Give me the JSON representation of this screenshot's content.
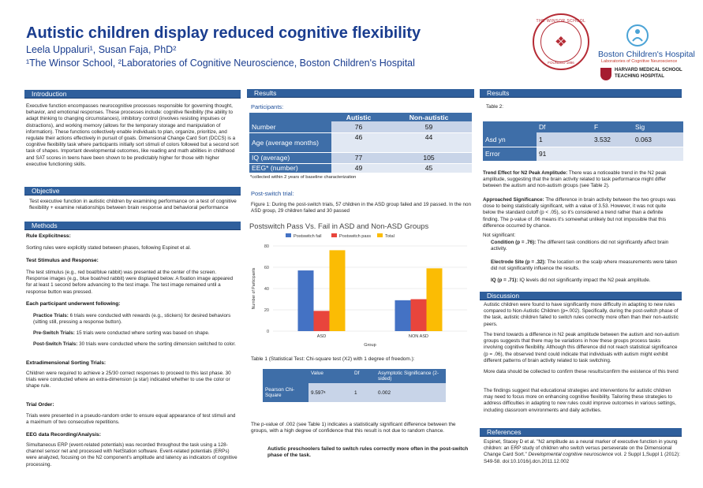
{
  "header": {
    "title": "Autistic children display reduced cognitive flexibility",
    "authors": "Leela Uppaluri¹, Susan Faja, PhD²",
    "affiliation": "¹The Winsor School, ²Laboratories of Cognitive Neuroscience, Boston Children's Hospital",
    "seal_text": "THE WINSOR SCHOOL",
    "seal_year": "FOUNDED 1886",
    "bch_name": "Boston Children's Hospital",
    "bch_sub": "Laboratories of Cognitive Neuroscience",
    "hms_line1": "HARVARD MEDICAL SCHOOL",
    "hms_line2": "TEACHING HOSPITAL"
  },
  "intro": {
    "heading": "Introduction",
    "body": "Executive function encompasses neurocognitive processes responsible for governing thought, behavior, and emotional responses. These processes include: cognitive flexibility (the ability to adapt thinking to changing circumstances), inhibitory control (involves resisting impulses or distractions), and working memory (allows for the temporary storage and manipulation of information). These functions collectively enable individuals to plan, organize, prioritize, and regulate their actions effectively in pursuit of goals. Dimensional Change Card Sort (DCCS) is a cognitive flexibility task where participants initially sort stimuli of colors followed but a second sort task of shapes. Important developmental outcomes, like reading and math abilities in childhood and SAT scores in teens have been shown to be predictably higher for those with higher executive functioning skills."
  },
  "objective": {
    "heading": "Objective",
    "body": "Test executive function in autistic children by examining performance on a test of cognitive flexibility + examine relationships between brain response and behavioral performance"
  },
  "methods": {
    "heading": "Methods",
    "rule_head": "Rule Explicitness:",
    "rule_body": "Sorting rules were explicitly stated between phases, following Espinet et al.",
    "stim_head": "Test Stimulus and Response:",
    "stim_body": "The test stimulus (e.g., red boat/blue rabbit) was presented at the center of the screen. Response images (e.g., blue boat/red rabbit) were displayed below. A fixation image appeared for at least 1 second before advancing to the test image. The test image remained until a response button was pressed.",
    "each_head": "Each participant underwent following:",
    "practice_label": "Practice Trials:",
    "practice_body": "6 trials were conducted with rewards (e.g., stickers) for desired behaviors (sitting still, pressing a response button).",
    "pre_label": "Pre-Switch Trials:",
    "pre_body": "15 trials were conducted where sorting was based on shape.",
    "post_label": "Post-Switch Trials:",
    "post_body": "30 trials were conducted where the sorting dimension switched to color.",
    "extra_head": "Extradimensional Sorting Trials:",
    "extra_body": "Children were required to achieve ≥ 25/30 correct responses to proceed to this last phase. 30 trials were conducted where an extra-dimension (a star) indicated whether to use the color or shape rule.",
    "trial_head": "Trial Order:",
    "trial_body": "Trials were presented in a pseudo-random order to ensure equal appearance of test stimuli and a maximum of two consecutive repetitions.",
    "eeg_head": "EEG data Recording/Analysis:",
    "eeg_body": "Simultaneous ERP (event-related potentials) was recorded throughout the task using a 128-channel sensor net and processed with NetStation software. Event-related potentials (ERPs) were analyzed, focusing on the N2 component's amplitude and latency as indicators of cognitive processing."
  },
  "results_mid": {
    "heading": "Results",
    "participants_label": "Participants:",
    "table_headers": [
      "",
      "Autistic",
      "Non-autistic"
    ],
    "table_rows": [
      [
        "Number",
        "76",
        "59"
      ],
      [
        "Age (average months)",
        "46",
        "44"
      ],
      [
        "IQ (average)",
        "77",
        "105"
      ],
      [
        "EEG* (number)",
        "49",
        "45"
      ]
    ],
    "table_note": "*collected within 2 years of baseline characterization",
    "post_switch_label": "Post-switch trial:",
    "figure_caption": "Figure 1: During the post-switch trials, 57 children in the ASD group failed and 19 passed. In the non ASD group, 29 children failed and 30 passed",
    "table1_caption": "Table 1 (Statistical Test: Chi-square test (X2) with 1 degree of freedom.):",
    "table1_headers": [
      "",
      "Value",
      "Df",
      "Asymptotic Significance (2-sided)"
    ],
    "table1_row": [
      "Pearson Chi-Square",
      "9.597ᵃ",
      "1",
      "0.002"
    ],
    "pvalue_text": "The p-value of .002 (see Table 1) indicates a statistically significant difference between the groups, with a high degree of confidence that this result is not due to random chance.",
    "conclusion_text": "Autistic preschoolers failed to switch rules correctly more often in the post-switch phase of the task."
  },
  "chart_data": {
    "type": "bar",
    "title": "Postswitch Pass Vs. Fail in ASD and Non-ASD Groups",
    "categories": [
      "ASD",
      "NON ASD"
    ],
    "series": [
      {
        "name": "Postswitch fail",
        "values": [
          57,
          29
        ],
        "color": "#4472c4"
      },
      {
        "name": "Postswitch pass",
        "values": [
          19,
          30
        ],
        "color": "#e8453c"
      },
      {
        "name": "Total",
        "values": [
          76,
          59
        ],
        "color": "#fbbc04"
      }
    ],
    "xlabel": "Group",
    "ylabel": "Number of Participants",
    "ylim": [
      0,
      80
    ],
    "yticks": [
      "0",
      "20",
      "40",
      "60",
      "80"
    ],
    "legend": "top"
  },
  "results_right": {
    "heading": "Results",
    "table2_label": "Table 2:",
    "table2_headers": [
      "",
      "Df",
      "F",
      "Sig"
    ],
    "table2_rows": [
      [
        "Asd yn",
        "1",
        "3.532",
        "0.063"
      ],
      [
        "Error",
        "91",
        "",
        ""
      ]
    ],
    "trend_label": "Trend Effect for N2 Peak Amplitude:",
    "trend_body": "There was a noticeable trend in the N2 peak amplitude, suggesting that the brain activity related to task performance might differ between the autism and non-autism groups (see Table 2).",
    "approach_label": "Approached Significance:",
    "approach_body": "The difference in brain activity between the two groups was close to being statistically significant, with a value of 3.53. However, it was not quite below the standard cutoff (p < .05), so it's considered a trend rather than a definite finding. The p-value of .06 means it's somewhat unlikely but not impossible that this difference occurred by chance.",
    "not_sig": "Not significant:",
    "cond_label": "Condition (p = .76):",
    "cond_body": "The different task conditions did not significantly affect brain activity.",
    "elec_label": "Electrode Site (p = .32):",
    "elec_body": "The location on the scalp where measurements were taken did not significantly influence the results.",
    "iq_label": "IQ (p = .71):",
    "iq_body": "IQ levels did not significantly impact the N2 peak amplitude."
  },
  "discussion": {
    "heading": "Discussion",
    "p1": "Autistic children were found to have significantly more difficulty in adapting to new rules compared to Non-Autistic Children (p=.002). Specifically, during the post-switch phase of the task, autistic children failed to switch rules correctly more often than their non-autistic peers.",
    "p2": "The trend towards a difference in N2 peak amplitude between the autism and non-autism groups suggests that there may be variations in how these groups process tasks involving cognitive flexibility. Although this difference did not reach statistical significance (p = .06), the observed trend could indicate that individuals with autism might exhibit different patterns of brain activity related to task switching.",
    "p3": "More data should be collected to confirm these results/confirm the existence of this trend",
    "p4": "The findings suggest that educational strategies and interventions for autistic children may need to focus more on enhancing cognitive flexibility. Tailoring these strategies to address difficulties in adapting to new rules could improve outcomes in various settings, including classroom environments and daily activities."
  },
  "references": {
    "heading": "References",
    "text_plain": "Espinet, Stacey D et al. \"N2 amplitude as a neural marker of executive function in young children: an ERP study of children who switch versus perseverate on the Dimensional Change Card Sort.\" ",
    "text_italic": "Developmental cognitive neuroscience",
    "text_tail": " vol. 2 Suppl 1,Suppl 1 (2012): S49-58. doi:10.1016/j.dcn.2011.12.002"
  }
}
